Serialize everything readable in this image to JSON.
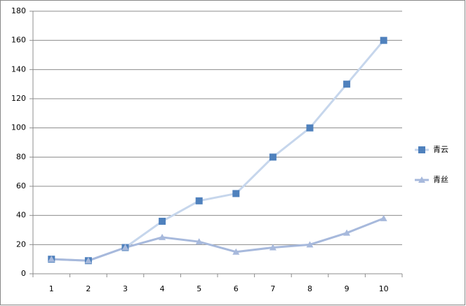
{
  "chart_data": {
    "type": "line",
    "categories": [
      "1",
      "2",
      "3",
      "4",
      "5",
      "6",
      "7",
      "8",
      "9",
      "10"
    ],
    "series": [
      {
        "name": "青云",
        "color": "#4f81bd",
        "line_color": "#c6d6ec",
        "marker": "square",
        "values": [
          10,
          9,
          18,
          36,
          50,
          55,
          80,
          100,
          130,
          160
        ]
      },
      {
        "name": "青丝",
        "color": "#a7b9dc",
        "line_color": "#a7b9dc",
        "marker": "triangle",
        "values": [
          10,
          9,
          18,
          25,
          22,
          15,
          18,
          20,
          28,
          38
        ]
      }
    ],
    "ylim": [
      0,
      180
    ],
    "yticks": [
      0,
      20,
      40,
      60,
      80,
      100,
      120,
      140,
      160,
      180
    ],
    "grid": true,
    "legend": "right"
  }
}
